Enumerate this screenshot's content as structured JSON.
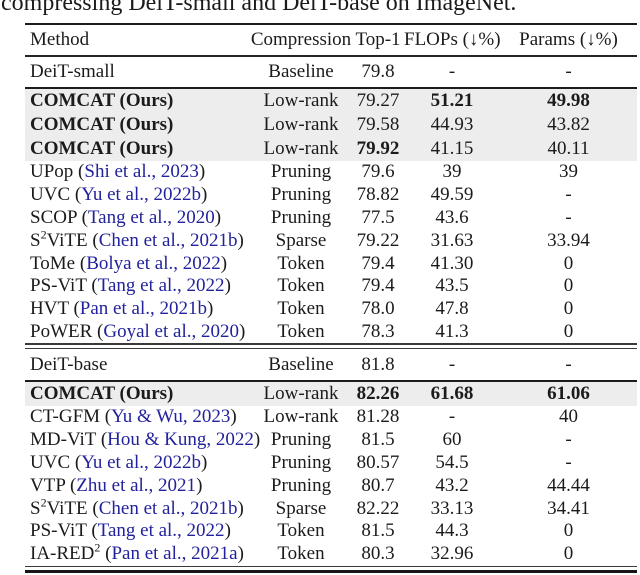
{
  "caption": "compressing DeiT-small and DeiT-base on ImageNet.",
  "colors": {
    "citation_blue": "#22229c",
    "highlight_gray": "#ededed",
    "text": "#1b1b1b"
  },
  "table": {
    "columns": [
      "Method",
      "Compression",
      "Top-1",
      "FLOPs (↓%)",
      "Params (↓%)"
    ],
    "rows": [
      {
        "method": [
          {
            "text": "DeiT-small"
          }
        ],
        "compression": "Baseline",
        "top1": {
          "text": "79.8",
          "bold": false
        },
        "flops": {
          "text": "-",
          "bold": false
        },
        "params": {
          "text": "-",
          "bold": false
        },
        "method_bold": false,
        "highlight": false,
        "divider_before": null
      },
      {
        "method": [
          {
            "text": "COMCAT (Ours)"
          }
        ],
        "compression": "Low-rank",
        "top1": {
          "text": "79.27",
          "bold": false
        },
        "flops": {
          "text": "51.21",
          "bold": true
        },
        "params": {
          "text": "49.98",
          "bold": true
        },
        "method_bold": true,
        "highlight": true,
        "divider_before": "thick"
      },
      {
        "method": [
          {
            "text": "COMCAT (Ours)"
          }
        ],
        "compression": "Low-rank",
        "top1": {
          "text": "79.58",
          "bold": false
        },
        "flops": {
          "text": "44.93",
          "bold": false
        },
        "params": {
          "text": "43.82",
          "bold": false
        },
        "method_bold": true,
        "highlight": true,
        "divider_before": null
      },
      {
        "method": [
          {
            "text": "COMCAT (Ours)"
          }
        ],
        "compression": "Low-rank",
        "top1": {
          "text": "79.92",
          "bold": true
        },
        "flops": {
          "text": "41.15",
          "bold": false
        },
        "params": {
          "text": "40.11",
          "bold": false
        },
        "method_bold": true,
        "highlight": true,
        "divider_before": null
      },
      {
        "method": [
          {
            "text": "UPop ("
          },
          {
            "text": "Shi et al., 2023",
            "cite": true
          },
          {
            "text": ")"
          }
        ],
        "compression": "Pruning",
        "top1": {
          "text": "79.6",
          "bold": false
        },
        "flops": {
          "text": "39",
          "bold": false
        },
        "params": {
          "text": "39",
          "bold": false
        },
        "method_bold": false,
        "highlight": false,
        "divider_before": null
      },
      {
        "method": [
          {
            "text": "UVC ("
          },
          {
            "text": "Yu et al., 2022b",
            "cite": true
          },
          {
            "text": ")"
          }
        ],
        "compression": "Pruning",
        "top1": {
          "text": "78.82",
          "bold": false
        },
        "flops": {
          "text": "49.59",
          "bold": false
        },
        "params": {
          "text": "-",
          "bold": false
        },
        "method_bold": false,
        "highlight": false,
        "divider_before": null
      },
      {
        "method": [
          {
            "text": "SCOP ("
          },
          {
            "text": "Tang et al., 2020",
            "cite": true
          },
          {
            "text": ")"
          }
        ],
        "compression": "Pruning",
        "top1": {
          "text": "77.5",
          "bold": false
        },
        "flops": {
          "text": "43.6",
          "bold": false
        },
        "params": {
          "text": "-",
          "bold": false
        },
        "method_bold": false,
        "highlight": false,
        "divider_before": null
      },
      {
        "method": [
          {
            "text": "S"
          },
          {
            "text": "2",
            "sup": true
          },
          {
            "text": "ViTE ("
          },
          {
            "text": "Chen et al., 2021b",
            "cite": true
          },
          {
            "text": ")"
          }
        ],
        "compression": "Sparse",
        "top1": {
          "text": "79.22",
          "bold": false
        },
        "flops": {
          "text": "31.63",
          "bold": false
        },
        "params": {
          "text": "33.94",
          "bold": false
        },
        "method_bold": false,
        "highlight": false,
        "divider_before": null
      },
      {
        "method": [
          {
            "text": "ToMe ("
          },
          {
            "text": "Bolya et al., 2022",
            "cite": true
          },
          {
            "text": ")"
          }
        ],
        "compression": "Token",
        "top1": {
          "text": "79.4",
          "bold": false
        },
        "flops": {
          "text": "41.30",
          "bold": false
        },
        "params": {
          "text": "0",
          "bold": false
        },
        "method_bold": false,
        "highlight": false,
        "divider_before": null
      },
      {
        "method": [
          {
            "text": "PS-ViT ("
          },
          {
            "text": "Tang et al., 2022",
            "cite": true
          },
          {
            "text": ")"
          }
        ],
        "compression": "Token",
        "top1": {
          "text": "79.4",
          "bold": false
        },
        "flops": {
          "text": "43.5",
          "bold": false
        },
        "params": {
          "text": "0",
          "bold": false
        },
        "method_bold": false,
        "highlight": false,
        "divider_before": null
      },
      {
        "method": [
          {
            "text": "HVT ("
          },
          {
            "text": "Pan et al., 2021b",
            "cite": true
          },
          {
            "text": ")"
          }
        ],
        "compression": "Token",
        "top1": {
          "text": "78.0",
          "bold": false
        },
        "flops": {
          "text": "47.8",
          "bold": false
        },
        "params": {
          "text": "0",
          "bold": false
        },
        "method_bold": false,
        "highlight": false,
        "divider_before": null
      },
      {
        "method": [
          {
            "text": "PoWER ("
          },
          {
            "text": "Goyal et al., 2020",
            "cite": true
          },
          {
            "text": ")"
          }
        ],
        "compression": "Token",
        "top1": {
          "text": "78.3",
          "bold": false
        },
        "flops": {
          "text": "41.3",
          "bold": false
        },
        "params": {
          "text": "0",
          "bold": false
        },
        "method_bold": false,
        "highlight": false,
        "divider_before": null
      },
      {
        "method": [
          {
            "text": "DeiT-base"
          }
        ],
        "compression": "Baseline",
        "top1": {
          "text": "81.8",
          "bold": false
        },
        "flops": {
          "text": "-",
          "bold": false
        },
        "params": {
          "text": "-",
          "bold": false
        },
        "method_bold": false,
        "highlight": false,
        "divider_before": "double"
      },
      {
        "method": [
          {
            "text": "COMCAT (Ours)"
          }
        ],
        "compression": "Low-rank",
        "top1": {
          "text": "82.26",
          "bold": true
        },
        "flops": {
          "text": "61.68",
          "bold": true
        },
        "params": {
          "text": "61.06",
          "bold": true
        },
        "method_bold": true,
        "highlight": true,
        "divider_before": "thick"
      },
      {
        "method": [
          {
            "text": "CT-GFM  ("
          },
          {
            "text": "Yu & Wu, 2023",
            "cite": true
          },
          {
            "text": ")"
          }
        ],
        "compression": "Low-rank",
        "top1": {
          "text": "81.28",
          "bold": false
        },
        "flops": {
          "text": "-",
          "bold": false
        },
        "params": {
          "text": "40",
          "bold": false
        },
        "method_bold": false,
        "highlight": false,
        "divider_before": null
      },
      {
        "method": [
          {
            "text": "MD-ViT ("
          },
          {
            "text": "Hou & Kung, 2022",
            "cite": true
          },
          {
            "text": ")"
          }
        ],
        "compression": "Pruning",
        "top1": {
          "text": "81.5",
          "bold": false
        },
        "flops": {
          "text": "60",
          "bold": false
        },
        "params": {
          "text": "-",
          "bold": false
        },
        "method_bold": false,
        "highlight": false,
        "divider_before": null
      },
      {
        "method": [
          {
            "text": "UVC ("
          },
          {
            "text": "Yu et al., 2022b",
            "cite": true
          },
          {
            "text": ")"
          }
        ],
        "compression": "Pruning",
        "top1": {
          "text": "80.57",
          "bold": false
        },
        "flops": {
          "text": "54.5",
          "bold": false
        },
        "params": {
          "text": "-",
          "bold": false
        },
        "method_bold": false,
        "highlight": false,
        "divider_before": null
      },
      {
        "method": [
          {
            "text": "VTP ("
          },
          {
            "text": "Zhu et al., 2021",
            "cite": true
          },
          {
            "text": ")"
          }
        ],
        "compression": "Pruning",
        "top1": {
          "text": "80.7",
          "bold": false
        },
        "flops": {
          "text": "43.2",
          "bold": false
        },
        "params": {
          "text": "44.44",
          "bold": false
        },
        "method_bold": false,
        "highlight": false,
        "divider_before": null
      },
      {
        "method": [
          {
            "text": "S"
          },
          {
            "text": "2",
            "sup": true
          },
          {
            "text": "ViTE ("
          },
          {
            "text": "Chen et al., 2021b",
            "cite": true
          },
          {
            "text": ")"
          }
        ],
        "compression": "Sparse",
        "top1": {
          "text": "82.22",
          "bold": false
        },
        "flops": {
          "text": "33.13",
          "bold": false
        },
        "params": {
          "text": "34.41",
          "bold": false
        },
        "method_bold": false,
        "highlight": false,
        "divider_before": null
      },
      {
        "method": [
          {
            "text": "PS-ViT ("
          },
          {
            "text": "Tang et al., 2022",
            "cite": true
          },
          {
            "text": ")"
          }
        ],
        "compression": "Token",
        "top1": {
          "text": "81.5",
          "bold": false
        },
        "flops": {
          "text": "44.3",
          "bold": false
        },
        "params": {
          "text": "0",
          "bold": false
        },
        "method_bold": false,
        "highlight": false,
        "divider_before": null
      },
      {
        "method": [
          {
            "text": "IA-RED"
          },
          {
            "text": "2",
            "sup": true
          },
          {
            "text": " ("
          },
          {
            "text": "Pan et al., 2021a",
            "cite": true
          },
          {
            "text": ")"
          }
        ],
        "compression": "Token",
        "top1": {
          "text": "80.3",
          "bold": false
        },
        "flops": {
          "text": "32.96",
          "bold": false
        },
        "params": {
          "text": "0",
          "bold": false
        },
        "method_bold": false,
        "highlight": false,
        "divider_before": null
      }
    ]
  }
}
